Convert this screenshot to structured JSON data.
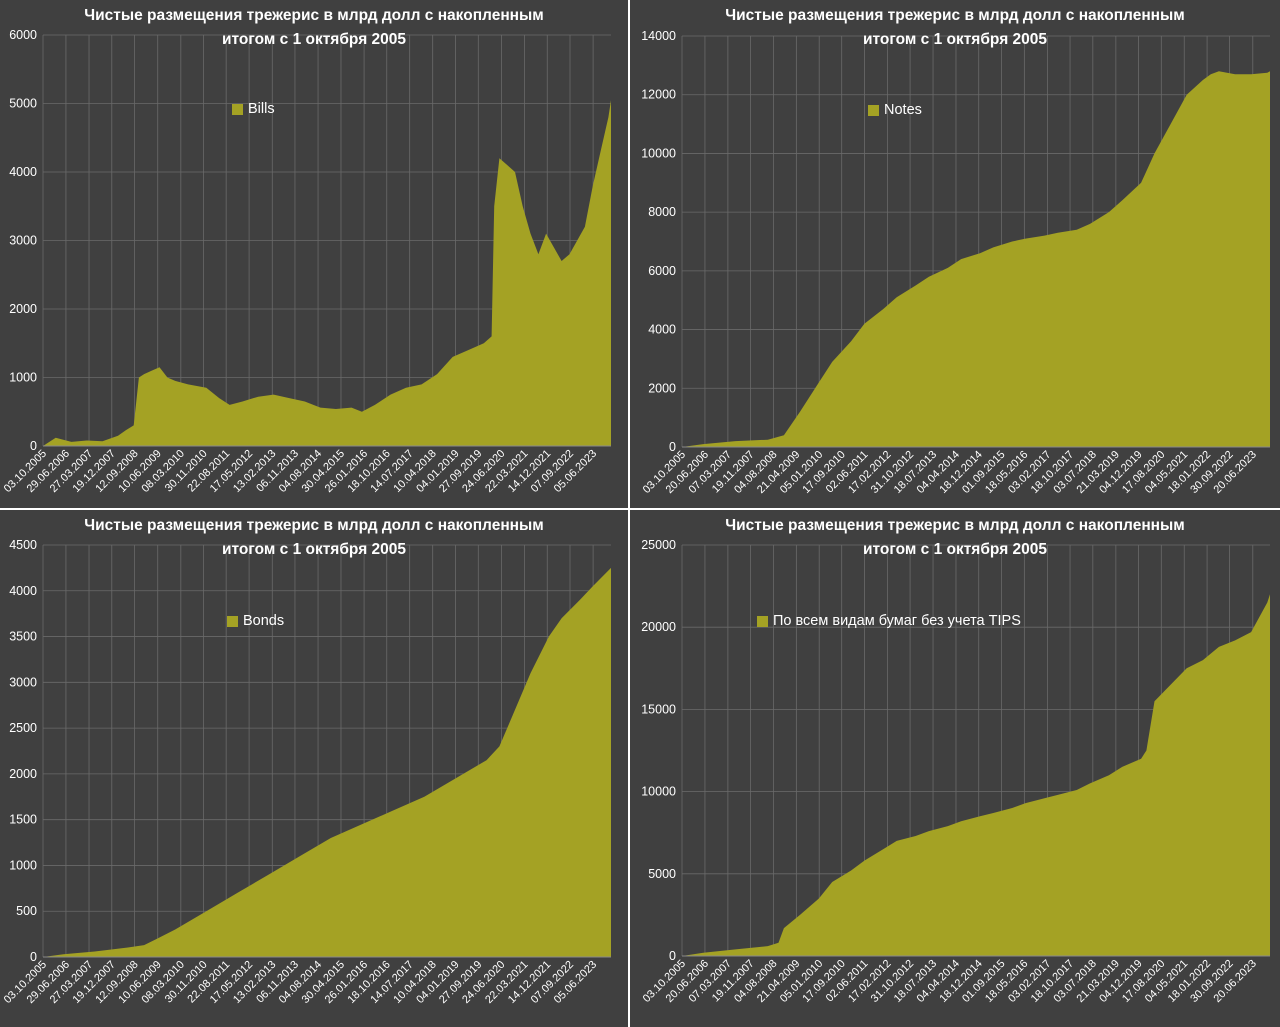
{
  "colors": {
    "fill": "#a4a224",
    "background": "#404040",
    "grid": "#6a6a6a",
    "text": "#ffffff"
  },
  "chart_data": [
    {
      "type": "area",
      "title": "Чистые размещения трежерис в млрд долл с накопленным итогом с 1 октября 2005",
      "title_lines": [
        "Чистые размещения трежерис в млрд долл с накопленным",
        "итогом с 1 октября 2005"
      ],
      "series": [
        {
          "name": "Bills"
        }
      ],
      "ylim": [
        0,
        6000
      ],
      "yticks": [
        "0",
        "1000",
        "2000",
        "3000",
        "4000",
        "5000",
        "6000"
      ],
      "x_range": [
        "2005-10-03",
        "2024-01-01"
      ],
      "xticks": [
        "03.10.2005",
        "29.06.2006",
        "27.03.2007",
        "19.12.2007",
        "12.09.2008",
        "10.06.2009",
        "08.03.2010",
        "30.11.2010",
        "22.08.2011",
        "17.05.2012",
        "13.02.2013",
        "06.11.2013",
        "04.08.2014",
        "30.04.2015",
        "26.01.2016",
        "18.10.2016",
        "14.07.2017",
        "10.04.2018",
        "04.01.2019",
        "27.09.2019",
        "24.06.2020",
        "22.03.2021",
        "14.12.2021",
        "07.09.2022",
        "05.06.2023"
      ],
      "x": [
        "2005-10-03",
        "2006-03-01",
        "2006-09-01",
        "2007-03-01",
        "2007-09-01",
        "2008-03-01",
        "2008-06-01",
        "2008-09-01",
        "2008-11-01",
        "2009-01-01",
        "2009-04-01",
        "2009-07-01",
        "2009-10-01",
        "2010-01-01",
        "2010-06-01",
        "2011-01-01",
        "2011-06-01",
        "2011-10-01",
        "2012-03-01",
        "2012-09-01",
        "2013-03-01",
        "2013-09-01",
        "2014-03-01",
        "2014-09-01",
        "2015-03-01",
        "2015-09-01",
        "2016-01-01",
        "2016-06-01",
        "2016-12-01",
        "2017-06-01",
        "2017-12-01",
        "2018-06-01",
        "2018-12-01",
        "2019-06-01",
        "2019-12-01",
        "2020-03-01",
        "2020-04-01",
        "2020-06-01",
        "2020-09-01",
        "2020-12-01",
        "2021-03-01",
        "2021-06-01",
        "2021-09-01",
        "2021-12-01",
        "2022-03-01",
        "2022-06-01",
        "2022-09-01",
        "2022-12-01",
        "2023-03-01",
        "2023-06-01",
        "2023-09-01",
        "2023-12-01",
        "2024-01-01"
      ],
      "values": [
        0,
        120,
        60,
        80,
        70,
        150,
        230,
        300,
        1000,
        1050,
        1100,
        1150,
        1000,
        950,
        900,
        850,
        700,
        600,
        650,
        720,
        750,
        700,
        650,
        560,
        540,
        560,
        500,
        600,
        750,
        850,
        900,
        1050,
        1300,
        1400,
        1500,
        1600,
        3500,
        4200,
        4100,
        4000,
        3500,
        3100,
        2800,
        3100,
        2900,
        2700,
        2800,
        3000,
        3200,
        3800,
        4300,
        4800,
        5050
      ]
    },
    {
      "type": "area",
      "title": "Чистые размещения трежерис в млрд долл с накопленным итогом с 1 октября 2005",
      "title_lines": [
        "Чистые размещения трежерис в млрд долл с накопленным",
        "итогом с 1 октября 2005"
      ],
      "series": [
        {
          "name": "Notes"
        }
      ],
      "ylim": [
        0,
        14000
      ],
      "yticks": [
        "0",
        "2000",
        "4000",
        "6000",
        "8000",
        "10000",
        "12000",
        "14000"
      ],
      "x_range": [
        "2005-10-03",
        "2024-01-01"
      ],
      "xticks": [
        "03.10.2005",
        "20.06.2006",
        "07.03.2007",
        "19.11.2007",
        "04.08.2008",
        "21.04.2009",
        "05.01.2010",
        "17.09.2010",
        "02.06.2011",
        "17.02.2012",
        "31.10.2012",
        "18.07.2013",
        "04.04.2014",
        "18.12.2014",
        "01.09.2015",
        "18.05.2016",
        "03.02.2017",
        "18.10.2017",
        "03.07.2018",
        "21.03.2019",
        "04.12.2019",
        "17.08.2020",
        "04.05.2021",
        "18.01.2022",
        "30.09.2022",
        "20.06.2023"
      ],
      "x": [
        "2005-10-03",
        "2006-06-01",
        "2007-06-01",
        "2008-06-01",
        "2008-12-01",
        "2009-06-01",
        "2010-01-01",
        "2010-06-01",
        "2011-01-01",
        "2011-06-01",
        "2012-01-01",
        "2012-06-01",
        "2013-01-01",
        "2013-06-01",
        "2014-01-01",
        "2014-06-01",
        "2015-01-01",
        "2015-06-01",
        "2016-01-01",
        "2016-06-01",
        "2017-01-01",
        "2017-06-01",
        "2018-01-01",
        "2018-06-01",
        "2019-01-01",
        "2019-06-01",
        "2020-01-01",
        "2020-06-01",
        "2020-12-01",
        "2021-06-01",
        "2021-12-01",
        "2022-03-01",
        "2022-06-01",
        "2022-12-01",
        "2023-06-01",
        "2023-12-01",
        "2024-01-01"
      ],
      "values": [
        0,
        100,
        200,
        250,
        400,
        1200,
        2200,
        2900,
        3600,
        4200,
        4700,
        5100,
        5500,
        5800,
        6100,
        6400,
        6600,
        6800,
        7000,
        7100,
        7200,
        7300,
        7400,
        7600,
        8000,
        8400,
        9000,
        10000,
        11000,
        12000,
        12500,
        12700,
        12800,
        12700,
        12700,
        12750,
        12800
      ]
    },
    {
      "type": "area",
      "title": "Чистые размещения трежерис в млрд долл с накопленным итогом с 1 октября 2005",
      "title_lines": [
        "Чистые размещения трежерис в млрд долл с накопленным",
        "итогом с 1 октября 2005"
      ],
      "series": [
        {
          "name": "Bonds"
        }
      ],
      "ylim": [
        0,
        4500
      ],
      "yticks": [
        "0",
        "500",
        "1000",
        "1500",
        "2000",
        "2500",
        "3000",
        "3500",
        "4000",
        "4500"
      ],
      "x_range": [
        "2005-10-03",
        "2024-01-01"
      ],
      "xticks": [
        "03.10.2005",
        "29.06.2006",
        "27.03.2007",
        "19.12.2007",
        "12.09.2008",
        "10.06.2009",
        "08.03.2010",
        "30.11.2010",
        "22.08.2011",
        "17.05.2012",
        "13.02.2013",
        "06.11.2013",
        "04.08.2014",
        "30.04.2015",
        "26.01.2016",
        "18.10.2016",
        "14.07.2017",
        "10.04.2018",
        "04.01.2019",
        "27.09.2019",
        "24.06.2020",
        "22.03.2021",
        "14.12.2021",
        "07.09.2022",
        "05.06.2023"
      ],
      "x": [
        "2005-10-03",
        "2006-06-01",
        "2007-06-01",
        "2008-06-01",
        "2009-01-01",
        "2009-06-01",
        "2010-01-01",
        "2011-01-01",
        "2012-01-01",
        "2013-01-01",
        "2014-01-01",
        "2015-01-01",
        "2016-01-01",
        "2017-01-01",
        "2018-01-01",
        "2019-01-01",
        "2020-01-01",
        "2020-06-01",
        "2020-12-01",
        "2021-06-01",
        "2022-01-01",
        "2022-06-01",
        "2023-01-01",
        "2023-06-01",
        "2024-01-01"
      ],
      "values": [
        0,
        30,
        60,
        100,
        130,
        200,
        300,
        500,
        700,
        900,
        1100,
        1300,
        1450,
        1600,
        1750,
        1950,
        2150,
        2300,
        2700,
        3100,
        3500,
        3700,
        3900,
        4050,
        4250
      ]
    },
    {
      "type": "area",
      "title": "Чистые размещения трежерис в млрд долл с накопленным итогом с 1 октября 2005",
      "title_lines": [
        "Чистые размещения трежерис в млрд долл с накопленным",
        "итогом с 1 октября 2005"
      ],
      "series": [
        {
          "name": "По всем видам бумаг без учета TIPS"
        }
      ],
      "ylim": [
        0,
        25000
      ],
      "yticks": [
        "0",
        "5000",
        "10000",
        "15000",
        "20000",
        "25000"
      ],
      "x_range": [
        "2005-10-03",
        "2024-01-01"
      ],
      "xticks": [
        "03.10.2005",
        "20.06.2006",
        "07.03.2007",
        "19.11.2007",
        "04.08.2008",
        "21.04.2009",
        "05.01.2010",
        "17.09.2010",
        "02.06.2011",
        "17.02.2012",
        "31.10.2012",
        "18.07.2013",
        "04.04.2014",
        "18.12.2014",
        "01.09.2015",
        "18.05.2016",
        "03.02.2017",
        "18.10.2017",
        "03.07.2018",
        "21.03.2019",
        "04.12.2019",
        "17.08.2020",
        "04.05.2021",
        "18.01.2022",
        "30.09.2022",
        "20.06.2023"
      ],
      "x": [
        "2005-10-03",
        "2006-06-01",
        "2007-06-01",
        "2008-06-01",
        "2008-10-01",
        "2008-12-01",
        "2009-06-01",
        "2010-01-01",
        "2010-06-01",
        "2011-01-01",
        "2011-06-01",
        "2012-01-01",
        "2012-06-01",
        "2013-01-01",
        "2013-06-01",
        "2014-01-01",
        "2014-06-01",
        "2015-01-01",
        "2015-06-01",
        "2016-01-01",
        "2016-06-01",
        "2017-01-01",
        "2017-06-01",
        "2018-01-01",
        "2018-06-01",
        "2019-01-01",
        "2019-06-01",
        "2020-01-01",
        "2020-03-01",
        "2020-06-01",
        "2020-12-01",
        "2021-06-01",
        "2021-12-01",
        "2022-06-01",
        "2022-12-01",
        "2023-06-01",
        "2023-12-01",
        "2024-01-01"
      ],
      "values": [
        0,
        200,
        400,
        600,
        800,
        1700,
        2500,
        3500,
        4500,
        5200,
        5800,
        6500,
        7000,
        7300,
        7600,
        7900,
        8200,
        8500,
        8700,
        9000,
        9300,
        9600,
        9800,
        10100,
        10500,
        11000,
        11500,
        12000,
        12500,
        15500,
        16500,
        17500,
        18000,
        18800,
        19200,
        19700,
        21500,
        22000
      ]
    }
  ]
}
